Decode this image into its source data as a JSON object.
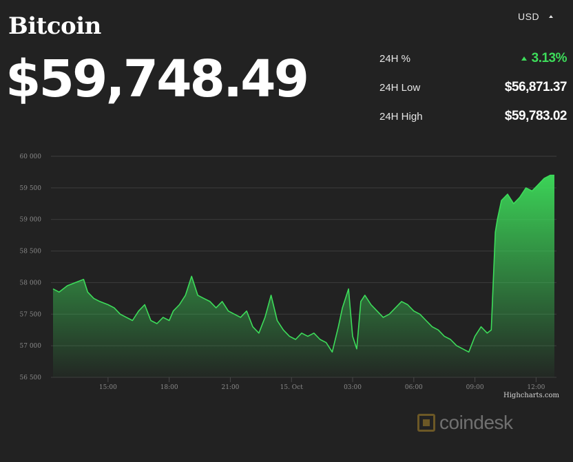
{
  "header": {
    "title": "Bitcoin",
    "price": "$59,748.49",
    "currency": "USD"
  },
  "stats": [
    {
      "label": "24H %",
      "value": "3.13%",
      "trend": "up"
    },
    {
      "label": "24H Low",
      "value": "$56,871.37"
    },
    {
      "label": "24H High",
      "value": "$59,783.02"
    }
  ],
  "credit": "Highcharts.com",
  "watermark": "coindesk",
  "colors": {
    "background": "#222222",
    "line": "#3ddc5a",
    "up": "#3ddc5a",
    "grid": "#3d3d3d"
  },
  "chart_data": {
    "type": "area",
    "title": "",
    "xlabel": "",
    "ylabel": "",
    "ylim": [
      56500,
      60000
    ],
    "yticks": [
      56500,
      57000,
      57500,
      58000,
      58500,
      59000,
      59500,
      60000
    ],
    "ytick_labels": [
      "56 500",
      "57 000",
      "57 500",
      "58 000",
      "58 500",
      "59 000",
      "59 500",
      "60 000"
    ],
    "xtick_labels": [
      "15:00",
      "18:00",
      "21:00",
      "15. Oct",
      "03:00",
      "06:00",
      "09:00",
      "12:00"
    ],
    "xtick_hours": [
      15,
      18,
      21,
      24,
      27,
      30,
      33,
      36
    ],
    "xlim_hours": [
      12.2,
      37.0
    ],
    "grid": true,
    "legend": "none",
    "series": [
      {
        "x_hours": [
          12.3,
          12.6,
          13.0,
          13.4,
          13.8,
          14.0,
          14.3,
          14.6,
          15.0,
          15.3,
          15.6,
          15.9,
          16.2,
          16.5,
          16.8,
          17.1,
          17.4,
          17.7,
          18.0,
          18.2,
          18.5,
          18.8,
          19.1,
          19.4,
          19.7,
          20.0,
          20.3,
          20.6,
          20.9,
          21.2,
          21.5,
          21.8,
          22.1,
          22.4,
          22.7,
          23.0,
          23.3,
          23.6,
          23.9,
          24.2,
          24.5,
          24.8,
          25.1,
          25.4,
          25.7,
          26.0,
          26.3,
          26.5,
          26.8,
          27.0,
          27.2,
          27.4,
          27.6,
          27.9,
          28.2,
          28.5,
          28.8,
          29.1,
          29.4,
          29.7,
          30.0,
          30.3,
          30.6,
          30.9,
          31.2,
          31.5,
          31.8,
          32.1,
          32.4,
          32.7,
          33.0,
          33.3,
          33.6,
          33.8,
          34.0,
          34.1,
          34.3,
          34.6,
          34.9,
          35.2,
          35.5,
          35.8,
          36.1,
          36.4,
          36.7,
          36.9
        ],
        "y": [
          57900,
          57850,
          57950,
          58000,
          58050,
          57850,
          57750,
          57700,
          57650,
          57600,
          57500,
          57450,
          57400,
          57550,
          57650,
          57400,
          57350,
          57450,
          57400,
          57550,
          57650,
          57800,
          58100,
          57800,
          57750,
          57700,
          57600,
          57700,
          57550,
          57500,
          57450,
          57550,
          57300,
          57200,
          57450,
          57800,
          57400,
          57250,
          57150,
          57100,
          57200,
          57150,
          57200,
          57100,
          57050,
          56900,
          57300,
          57600,
          57900,
          57150,
          56950,
          57700,
          57800,
          57650,
          57550,
          57450,
          57500,
          57600,
          57700,
          57650,
          57550,
          57500,
          57400,
          57300,
          57250,
          57150,
          57100,
          57000,
          56950,
          56900,
          57150,
          57300,
          57200,
          57250,
          58800,
          59000,
          59300,
          59400,
          59250,
          59350,
          59500,
          59450,
          59550,
          59650,
          59700,
          59700
        ]
      }
    ]
  }
}
